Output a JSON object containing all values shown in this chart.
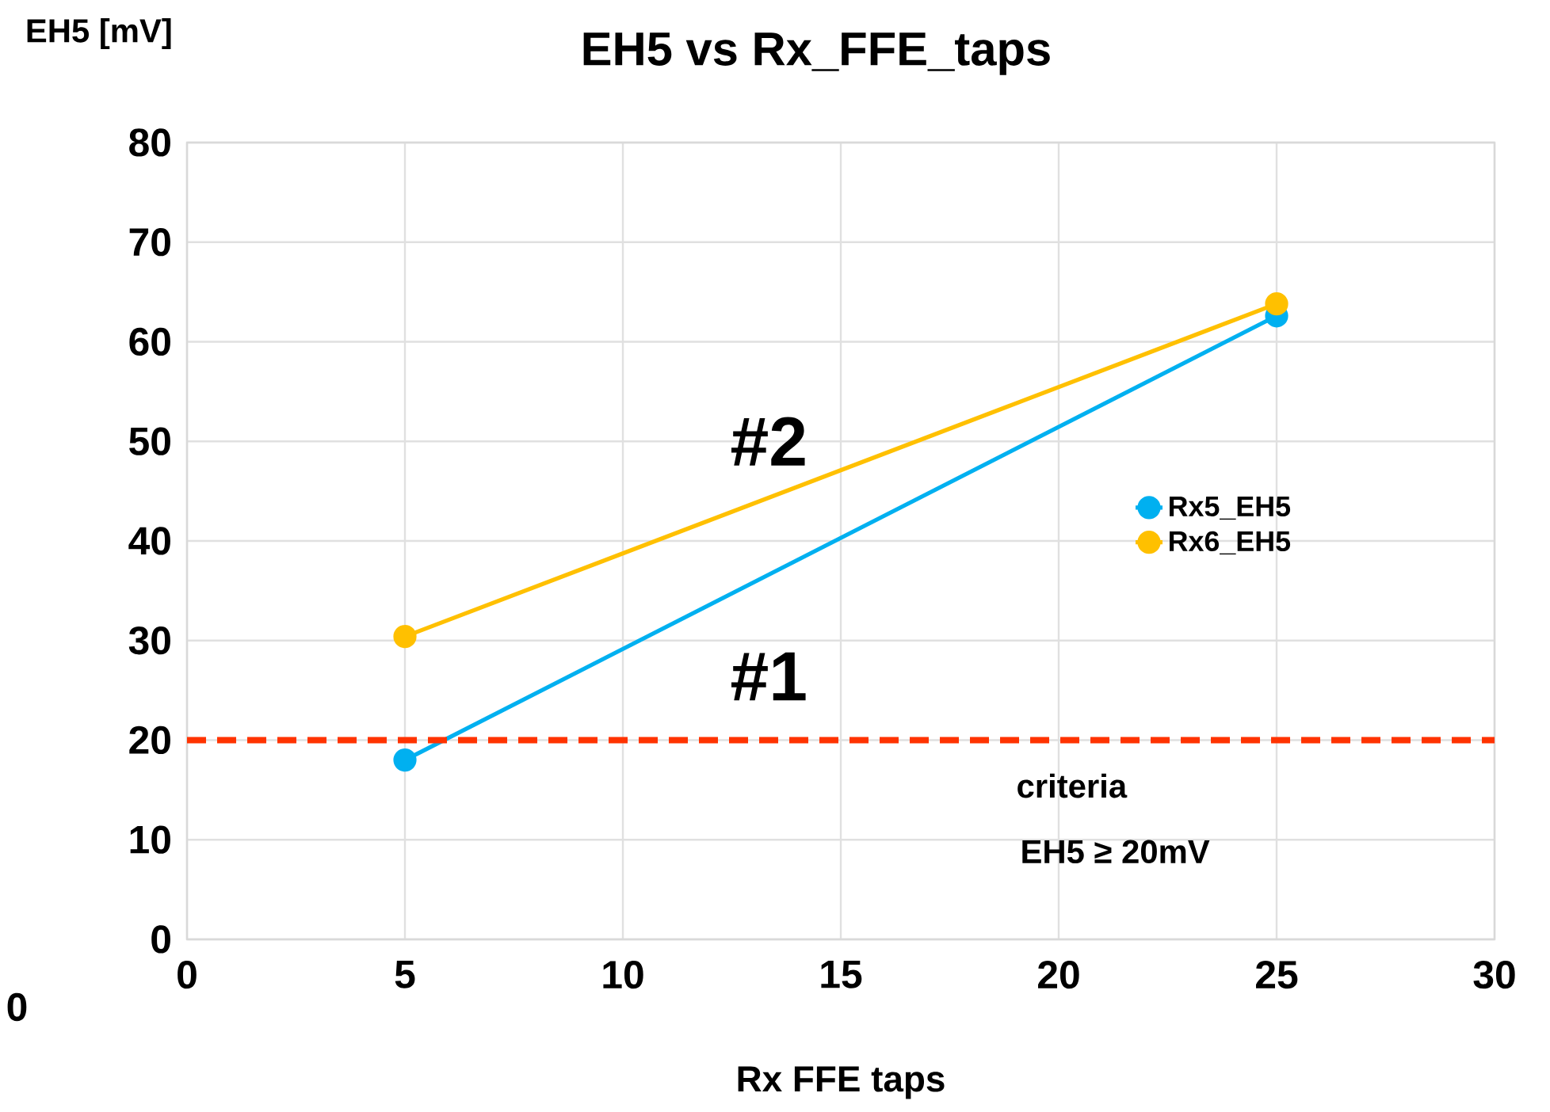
{
  "chart_data": {
    "type": "line",
    "title": "EH5 vs Rx_FFE_taps",
    "xlabel": "Rx FFE taps",
    "ylabel": "EH5 [mV]",
    "x": [
      5,
      25
    ],
    "series": [
      {
        "name": "Rx5_EH5",
        "color": "#00b0f0",
        "values": [
          18,
          62.6
        ]
      },
      {
        "name": "Rx6_EH5",
        "color": "#ffc000",
        "values": [
          30.4,
          63.8
        ]
      }
    ],
    "xlim": [
      0,
      30
    ],
    "xticks": [
      0,
      5,
      10,
      15,
      20,
      25,
      30
    ],
    "ylim": [
      0,
      80
    ],
    "yticks": [
      0,
      10,
      20,
      30,
      40,
      50,
      60,
      70,
      80
    ],
    "grid": true,
    "legend": "right",
    "marker": "circle",
    "line_style": "solid",
    "ref_lines": [
      {
        "axis": "y",
        "value": 20,
        "label": "criteria",
        "color": "#ff3300",
        "line_style": "dashed"
      }
    ],
    "annotations": [
      "#2",
      "#1",
      "0",
      "EH5 ≥ 20mV"
    ]
  }
}
